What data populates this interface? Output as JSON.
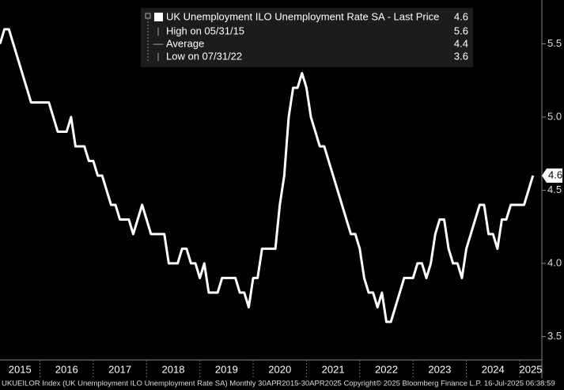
{
  "chart_data": {
    "type": "line",
    "legend": {
      "title": "UK Unemployment ILO Unemployment Rate SA - Last Price",
      "last_price": "4.6",
      "rows": [
        {
          "label": "High on 05/31/15",
          "value": "5.6"
        },
        {
          "label": "Average",
          "value": "4.4"
        },
        {
          "label": "Low on 07/31/22",
          "value": "3.6"
        }
      ]
    },
    "footer": "UKUEILOR Index (UK Unemployment ILO Unemployment Rate SA)  Monthly 30APR2015-30APR2025  Copyright© 2025 Bloomberg Finance L.P.  16-Jul-2025 06:38:59",
    "x": [
      "2015-04",
      "2015-05",
      "2015-06",
      "2015-07",
      "2015-08",
      "2015-09",
      "2015-10",
      "2015-11",
      "2015-12",
      "2016-01",
      "2016-02",
      "2016-03",
      "2016-04",
      "2016-05",
      "2016-06",
      "2016-07",
      "2016-08",
      "2016-09",
      "2016-10",
      "2016-11",
      "2016-12",
      "2017-01",
      "2017-02",
      "2017-03",
      "2017-04",
      "2017-05",
      "2017-06",
      "2017-07",
      "2017-08",
      "2017-09",
      "2017-10",
      "2017-11",
      "2017-12",
      "2018-01",
      "2018-02",
      "2018-03",
      "2018-04",
      "2018-05",
      "2018-06",
      "2018-07",
      "2018-08",
      "2018-09",
      "2018-10",
      "2018-11",
      "2018-12",
      "2019-01",
      "2019-02",
      "2019-03",
      "2019-04",
      "2019-05",
      "2019-06",
      "2019-07",
      "2019-08",
      "2019-09",
      "2019-10",
      "2019-11",
      "2019-12",
      "2020-01",
      "2020-02",
      "2020-03",
      "2020-04",
      "2020-05",
      "2020-06",
      "2020-07",
      "2020-08",
      "2020-09",
      "2020-10",
      "2020-11",
      "2020-12",
      "2021-01",
      "2021-02",
      "2021-03",
      "2021-04",
      "2021-05",
      "2021-06",
      "2021-07",
      "2021-08",
      "2021-09",
      "2021-10",
      "2021-11",
      "2021-12",
      "2022-01",
      "2022-02",
      "2022-03",
      "2022-04",
      "2022-05",
      "2022-06",
      "2022-07",
      "2022-08",
      "2022-09",
      "2022-10",
      "2022-11",
      "2022-12",
      "2023-01",
      "2023-02",
      "2023-03",
      "2023-04",
      "2023-05",
      "2023-06",
      "2023-07",
      "2023-08",
      "2023-09",
      "2023-10",
      "2023-11",
      "2023-12",
      "2024-01",
      "2024-02",
      "2024-03",
      "2024-04",
      "2024-05",
      "2024-06",
      "2024-07",
      "2024-08",
      "2024-09",
      "2024-10",
      "2024-11",
      "2024-12",
      "2025-01",
      "2025-02",
      "2025-03",
      "2025-04"
    ],
    "series": [
      {
        "name": "UK Unemployment ILO Unemployment Rate SA",
        "color": "#ffffff",
        "values": [
          5.5,
          5.6,
          5.6,
          5.5,
          5.4,
          5.3,
          5.2,
          5.1,
          5.1,
          5.1,
          5.1,
          5.1,
          5.0,
          4.9,
          4.9,
          4.9,
          5.0,
          4.8,
          4.8,
          4.8,
          4.7,
          4.7,
          4.6,
          4.6,
          4.5,
          4.4,
          4.4,
          4.3,
          4.3,
          4.3,
          4.2,
          4.3,
          4.4,
          4.3,
          4.2,
          4.2,
          4.2,
          4.2,
          4.0,
          4.0,
          4.0,
          4.1,
          4.1,
          4.0,
          4.0,
          3.9,
          4.0,
          3.8,
          3.8,
          3.8,
          3.9,
          3.9,
          3.9,
          3.9,
          3.8,
          3.8,
          3.7,
          3.9,
          3.9,
          4.1,
          4.1,
          4.1,
          4.1,
          4.4,
          4.6,
          5.0,
          5.2,
          5.2,
          5.3,
          5.2,
          5.0,
          4.9,
          4.8,
          4.8,
          4.7,
          4.6,
          4.5,
          4.4,
          4.3,
          4.2,
          4.2,
          4.1,
          3.9,
          3.8,
          3.8,
          3.7,
          3.8,
          3.6,
          3.6,
          3.7,
          3.8,
          3.9,
          3.9,
          3.9,
          4.0,
          4.0,
          3.9,
          4.0,
          4.2,
          4.3,
          4.3,
          4.1,
          4.0,
          4.0,
          3.9,
          4.1,
          4.2,
          4.3,
          4.4,
          4.4,
          4.2,
          4.2,
          4.1,
          4.3,
          4.3,
          4.4,
          4.4,
          4.4,
          4.4,
          4.5,
          4.6
        ]
      }
    ],
    "xlim": [
      "2015-04",
      "2025-06"
    ],
    "xticks": [
      {
        "value": "2015-01",
        "label": "2015"
      },
      {
        "value": "2016-01",
        "label": "2016"
      },
      {
        "value": "2017-01",
        "label": "2017"
      },
      {
        "value": "2018-01",
        "label": "2018"
      },
      {
        "value": "2019-01",
        "label": "2019"
      },
      {
        "value": "2020-01",
        "label": "2020"
      },
      {
        "value": "2021-01",
        "label": "2021"
      },
      {
        "value": "2022-01",
        "label": "2022"
      },
      {
        "value": "2023-01",
        "label": "2023"
      },
      {
        "value": "2024-01",
        "label": "2024"
      },
      {
        "value": "2025-01",
        "label": "2025"
      }
    ],
    "ylim": [
      3.34,
      5.8
    ],
    "yticks": [
      3.5,
      {
        "value": 4,
        "label": "4.0"
      },
      4.5,
      {
        "value": 5,
        "label": "5.0"
      },
      5.5
    ]
  }
}
